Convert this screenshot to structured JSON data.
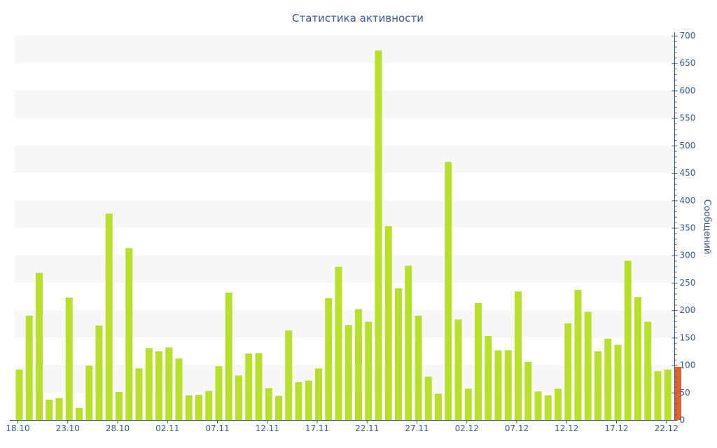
{
  "chart_data": {
    "type": "bar",
    "title": "Статистика активности",
    "xlabel": "",
    "ylabel": "Сообщений",
    "ylim": [
      0,
      700
    ],
    "y_ticks": [
      0,
      50,
      100,
      150,
      200,
      250,
      300,
      350,
      400,
      450,
      500,
      550,
      600,
      650,
      700
    ],
    "x_tick_labels": [
      "18.10",
      "23.10",
      "28.10",
      "02.11",
      "07.11",
      "12.11",
      "17.11",
      "22.11",
      "27.11",
      "02.12",
      "07.12",
      "12.12",
      "17.12",
      "22.12"
    ],
    "y_axis_position": "right",
    "grid": "alternating horizontal bands",
    "categories": [
      "18.10",
      "19.10",
      "20.10",
      "21.10",
      "22.10",
      "23.10",
      "24.10",
      "25.10",
      "26.10",
      "27.10",
      "28.10",
      "29.10",
      "30.10",
      "31.10",
      "01.11",
      "02.11",
      "03.11",
      "04.11",
      "05.11",
      "06.11",
      "07.11",
      "08.11",
      "09.11",
      "10.11",
      "11.11",
      "12.11",
      "13.11",
      "14.11",
      "15.11",
      "16.11",
      "17.11",
      "18.11",
      "19.11",
      "20.11",
      "21.11",
      "22.11",
      "23.11",
      "24.11",
      "25.11",
      "26.11",
      "27.11",
      "28.11",
      "29.11",
      "30.11",
      "01.12",
      "02.12",
      "03.12",
      "04.12",
      "05.12",
      "06.12",
      "07.12",
      "08.12",
      "09.12",
      "10.12",
      "11.12",
      "12.12",
      "13.12",
      "14.12",
      "15.12",
      "16.12",
      "17.12",
      "18.12",
      "19.12",
      "20.12",
      "21.12",
      "22.12",
      "23.12"
    ],
    "series": [
      {
        "color": "#b8e02b",
        "values": [
          92,
          190,
          268,
          37,
          40,
          223,
          22,
          99,
          172,
          376,
          51,
          313,
          94,
          131,
          125,
          132,
          112,
          45,
          46,
          53,
          98,
          232,
          81,
          121,
          122,
          58,
          44,
          163,
          69,
          72,
          94,
          222,
          279,
          173,
          202,
          179,
          673,
          353,
          240,
          281,
          190,
          79,
          48,
          470,
          183,
          57,
          213,
          153,
          127,
          127,
          234,
          106,
          52,
          45,
          57,
          176,
          237,
          197,
          125,
          148,
          137,
          290,
          224,
          179,
          89,
          92,
          97
        ],
        "highlight_last": true,
        "highlight_color": "#e06030"
      }
    ]
  }
}
